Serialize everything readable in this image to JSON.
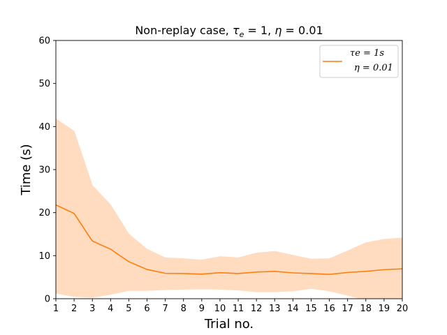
{
  "chart_data": {
    "type": "line",
    "title": "Non-replay case, τe = 1, η = 0.01",
    "title_parts": {
      "prefix": "Non-replay case, ",
      "tau": "τ",
      "tau_sub": "e",
      "tau_value": " = 1, ",
      "eta": "η",
      "eta_value": " = 0.01"
    },
    "xlabel": "Trial no.",
    "ylabel": "Time (s)",
    "xlim": [
      1,
      20
    ],
    "ylim": [
      0,
      60
    ],
    "x_ticks": [
      1,
      2,
      3,
      4,
      5,
      6,
      7,
      8,
      9,
      10,
      11,
      12,
      13,
      14,
      15,
      16,
      17,
      18,
      19,
      20
    ],
    "y_ticks": [
      0,
      10,
      20,
      30,
      40,
      50,
      60
    ],
    "grid": false,
    "legend_position": "top-right",
    "x": [
      1,
      2,
      3,
      4,
      5,
      6,
      7,
      8,
      9,
      10,
      11,
      12,
      13,
      14,
      15,
      16,
      17,
      18,
      19,
      20
    ],
    "series": [
      {
        "line1": "τe = 1s",
        "line2": "η = 0.01",
        "color": "#ff7f0e",
        "band_color": "#ffdcbf",
        "values": [
          21.8,
          19.8,
          13.4,
          11.5,
          8.6,
          6.8,
          5.9,
          5.85,
          5.7,
          6.05,
          5.85,
          6.2,
          6.35,
          6.0,
          5.85,
          5.65,
          6.1,
          6.35,
          6.75,
          6.95
        ],
        "upper": [
          41.8,
          38.9,
          26.3,
          21.8,
          15.0,
          11.5,
          9.5,
          9.3,
          9.0,
          9.8,
          9.5,
          10.6,
          11.0,
          10.1,
          9.2,
          9.3,
          11.1,
          13.0,
          13.8,
          14.1
        ],
        "lower": [
          1.3,
          0.5,
          0.3,
          1.0,
          1.9,
          1.9,
          2.1,
          2.2,
          2.3,
          2.2,
          2.0,
          1.6,
          1.6,
          1.8,
          2.4,
          1.8,
          0.8,
          -0.3,
          -0.3,
          -0.3
        ]
      }
    ]
  }
}
